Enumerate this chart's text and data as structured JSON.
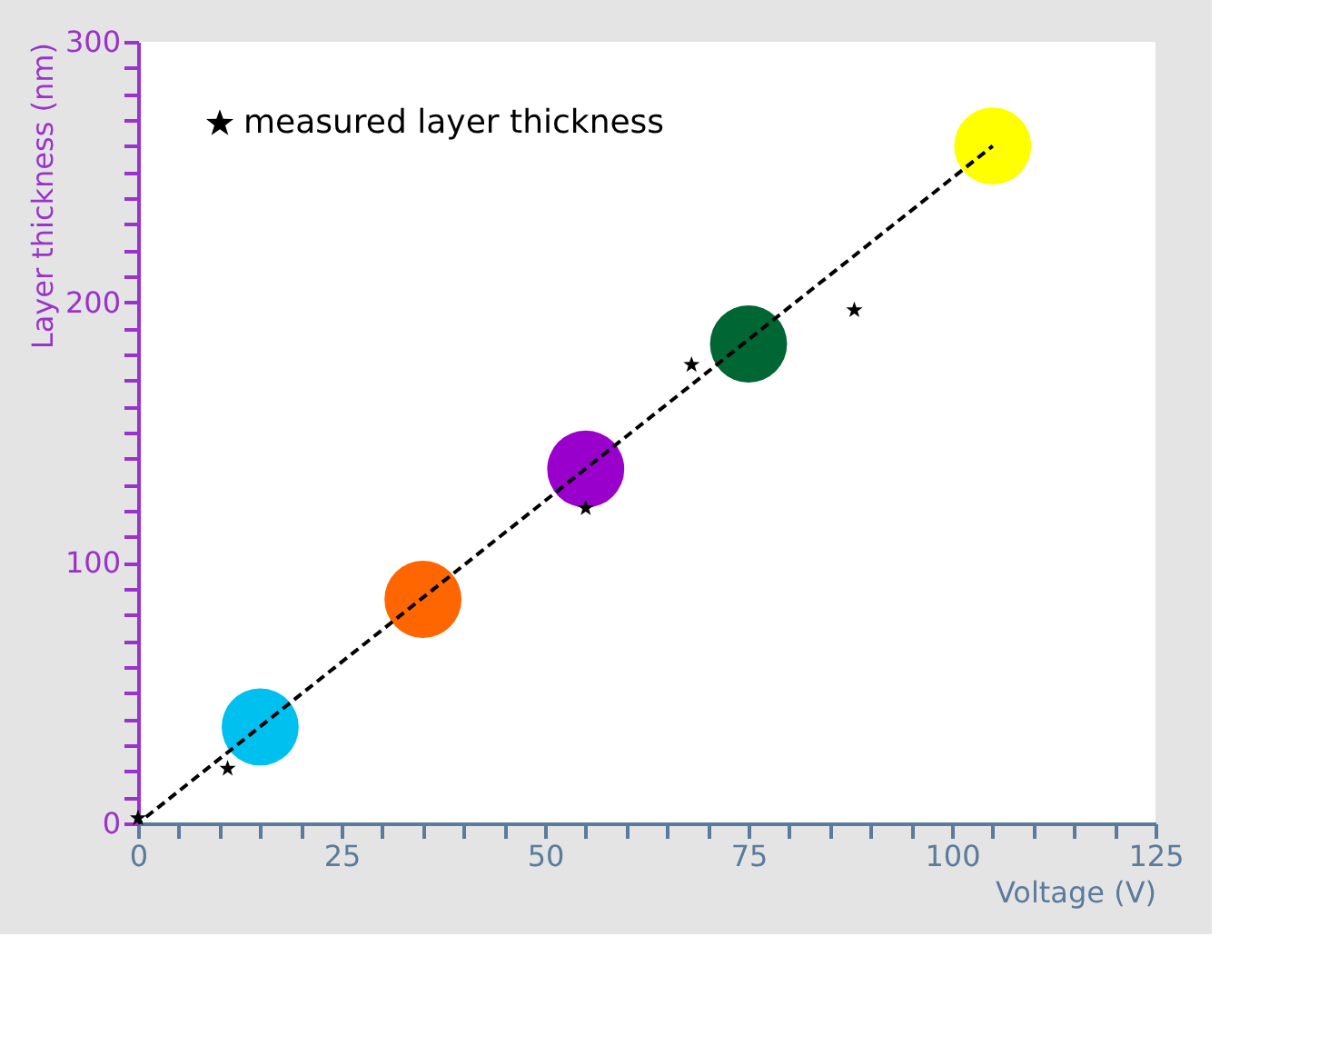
{
  "chart_data": {
    "type": "scatter",
    "xlabel": "Voltage (V)",
    "ylabel": "Layer thickness (nm)",
    "xlim": [
      0,
      125
    ],
    "ylim": [
      0,
      300
    ],
    "xticks": [
      0,
      {
        "value": 5,
        "label": null
      },
      {
        "value": 10,
        "label": null
      },
      {
        "value": 15,
        "label": null
      },
      {
        "value": 20,
        "label": null
      },
      25,
      {
        "value": 30,
        "label": null
      },
      {
        "value": 35,
        "label": null
      },
      {
        "value": 40,
        "label": null
      },
      {
        "value": 45,
        "label": null
      },
      50,
      {
        "value": 55,
        "label": null
      },
      {
        "value": 60,
        "label": null
      },
      {
        "value": 65,
        "label": null
      },
      {
        "value": 70,
        "label": null
      },
      75,
      {
        "value": 80,
        "label": null
      },
      {
        "value": 85,
        "label": null
      },
      {
        "value": 90,
        "label": null
      },
      {
        "value": 95,
        "label": null
      },
      100,
      {
        "value": 105,
        "label": null
      },
      {
        "value": 110,
        "label": null
      },
      {
        "value": 115,
        "label": null
      },
      {
        "value": 120,
        "label": null
      },
      125
    ],
    "yticks": [
      0,
      {
        "value": 10,
        "label": null
      },
      {
        "value": 20,
        "label": null
      },
      {
        "value": 30,
        "label": null
      },
      {
        "value": 40,
        "label": null
      },
      {
        "value": 50,
        "label": null
      },
      {
        "value": 60,
        "label": null
      },
      {
        "value": 70,
        "label": null
      },
      {
        "value": 80,
        "label": null
      },
      {
        "value": 90,
        "label": null
      },
      100,
      {
        "value": 110,
        "label": null
      },
      {
        "value": 120,
        "label": null
      },
      {
        "value": 130,
        "label": null
      },
      {
        "value": 140,
        "label": null
      },
      {
        "value": 150,
        "label": null
      },
      {
        "value": 160,
        "label": null
      },
      {
        "value": 170,
        "label": null
      },
      {
        "value": 180,
        "label": null
      },
      {
        "value": 190,
        "label": null
      },
      200,
      {
        "value": 210,
        "label": null
      },
      {
        "value": 220,
        "label": null
      },
      {
        "value": 230,
        "label": null
      },
      {
        "value": 240,
        "label": null
      },
      {
        "value": 250,
        "label": null
      },
      {
        "value": 260,
        "label": null
      },
      {
        "value": 270,
        "label": null
      },
      {
        "value": 280,
        "label": null
      },
      {
        "value": 290,
        "label": null
      },
      300
    ],
    "grid": false,
    "legend": "top left",
    "series": [
      {
        "type": "scatter",
        "marker": "circle",
        "x": [
          15,
          35,
          55,
          75,
          105
        ],
        "values": [
          37,
          86,
          136,
          184,
          260
        ],
        "colors": [
          "#00c0f0",
          "#ff6600",
          "#9900cc",
          "#006633",
          "#ffff00"
        ]
      },
      {
        "type": "line",
        "color": "#000000",
        "line_style": "dashed",
        "marker": "none",
        "x": [
          0,
          105
        ],
        "values": [
          0,
          260
        ]
      },
      {
        "type": "scatter",
        "marker": "star",
        "name": "measured layer thickness",
        "color": "#000000",
        "x": [
          0,
          11,
          55,
          68,
          88
        ],
        "values": [
          2,
          21,
          121,
          176,
          197
        ]
      }
    ]
  }
}
